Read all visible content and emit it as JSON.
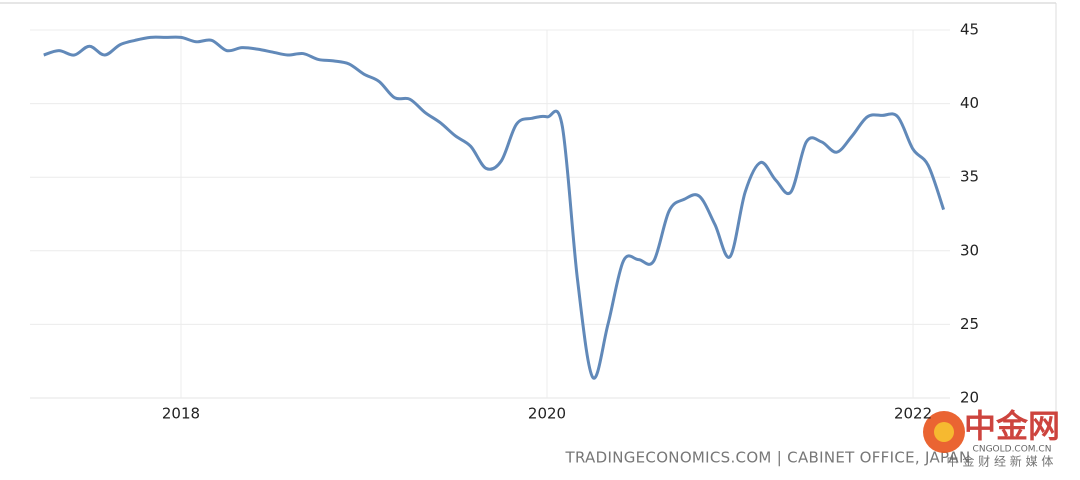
{
  "chart_data": {
    "type": "line",
    "source": "TRADINGECONOMICS.COM | CABINET OFFICE, JAPAN",
    "x": [
      2017.25,
      2017.333,
      2017.417,
      2017.5,
      2017.583,
      2017.667,
      2017.75,
      2017.833,
      2017.917,
      2018,
      2018.083,
      2018.167,
      2018.25,
      2018.333,
      2018.417,
      2018.5,
      2018.583,
      2018.667,
      2018.75,
      2018.833,
      2018.917,
      2019,
      2019.083,
      2019.167,
      2019.25,
      2019.333,
      2019.417,
      2019.5,
      2019.583,
      2019.667,
      2019.75,
      2019.833,
      2019.917,
      2020,
      2020.083,
      2020.167,
      2020.25,
      2020.333,
      2020.417,
      2020.5,
      2020.583,
      2020.667,
      2020.75,
      2020.833,
      2020.917,
      2021,
      2021.083,
      2021.167,
      2021.25,
      2021.333,
      2021.417,
      2021.5,
      2021.583,
      2021.667,
      2021.75,
      2021.833,
      2021.917,
      2022,
      2022.083,
      2022.167
    ],
    "series": [
      {
        "color": "#6189b9",
        "values": [
          43.3,
          43.6,
          43.3,
          43.9,
          43.3,
          44.0,
          44.3,
          44.5,
          44.5,
          44.5,
          44.2,
          44.3,
          43.6,
          43.8,
          43.7,
          43.5,
          43.3,
          43.4,
          43.0,
          42.9,
          42.7,
          42.0,
          41.5,
          40.4,
          40.3,
          39.4,
          38.7,
          37.8,
          37.1,
          35.6,
          36.1,
          38.6,
          39.0,
          39.1,
          38.5,
          28.0,
          21.4,
          25.0,
          29.3,
          29.4,
          29.3,
          32.7,
          33.5,
          33.7,
          31.8,
          29.6,
          34.0,
          36.0,
          34.8,
          34.0,
          37.4,
          37.4,
          36.7,
          37.8,
          39.1,
          39.2,
          39.1,
          36.9,
          35.8,
          32.8
        ]
      }
    ],
    "xlim": [
      2017.175,
      2022.202
    ],
    "xticks": [
      2018,
      2020,
      2022
    ],
    "ylim": [
      20,
      45
    ],
    "yticks": [
      20,
      25,
      30,
      35,
      40,
      45
    ],
    "grid": true
  },
  "watermark": {
    "name": "中金网",
    "domain": "CNGOLD.COM.CN",
    "slogan": "中 金 财 经 新 媒 体"
  }
}
